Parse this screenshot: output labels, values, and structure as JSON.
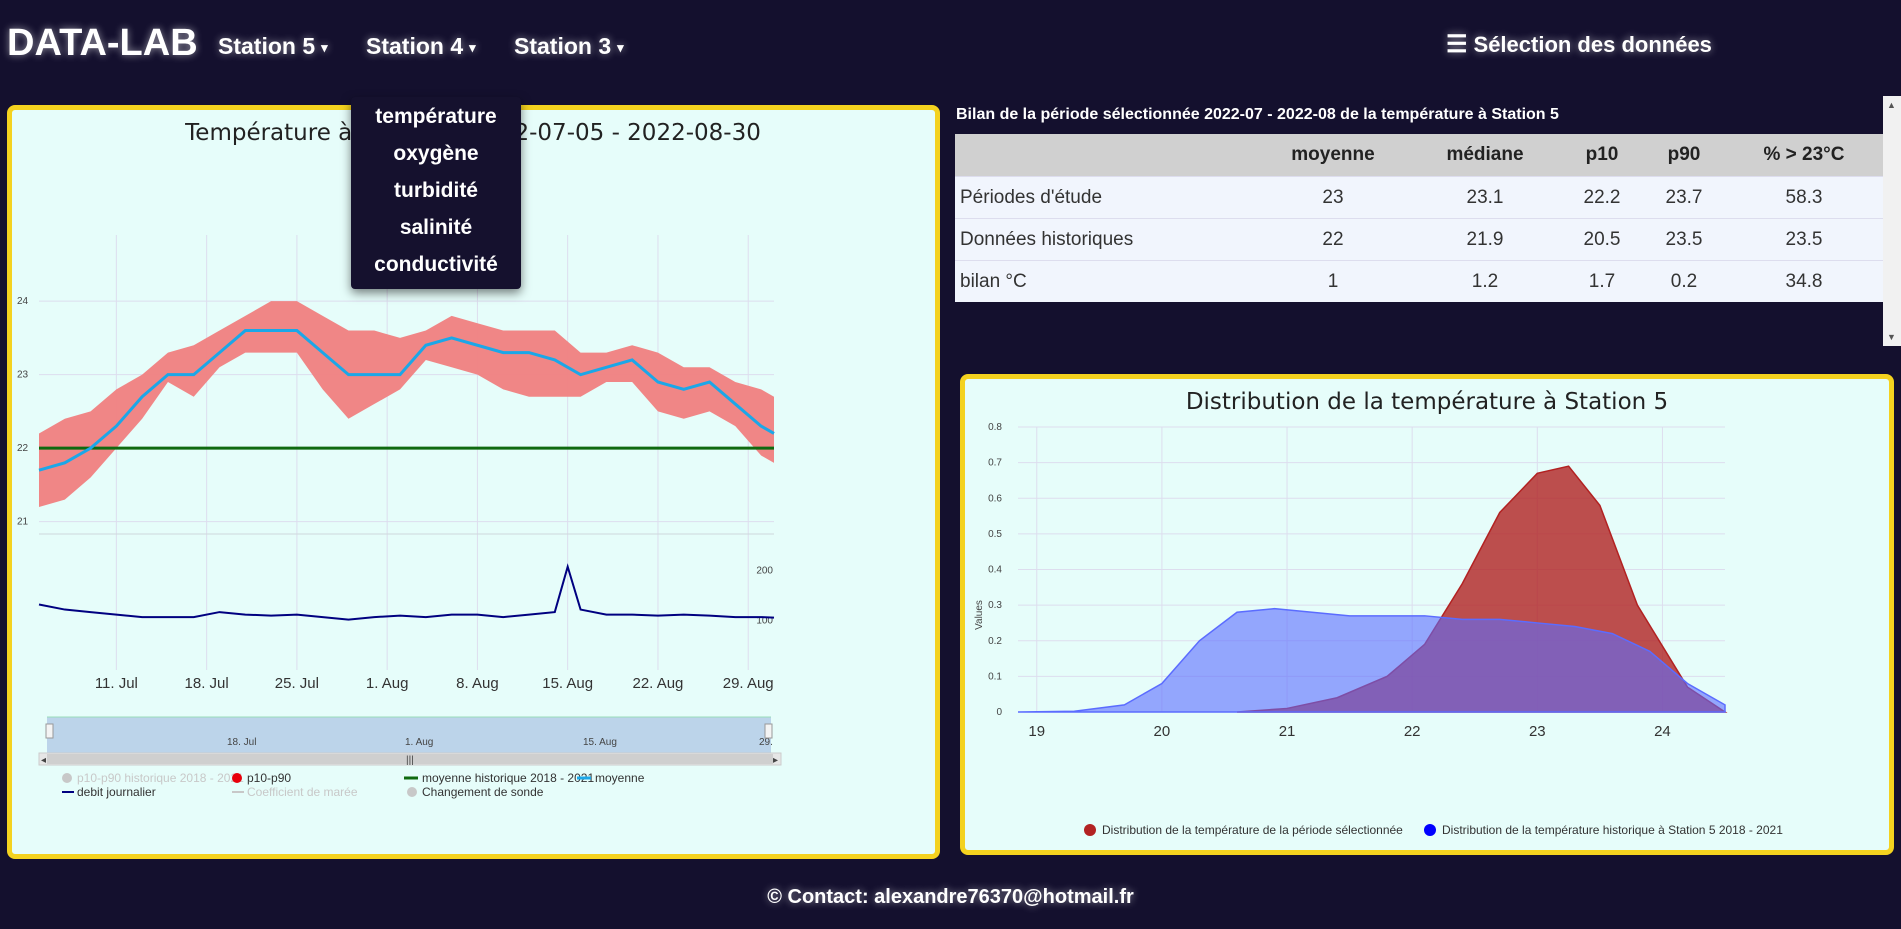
{
  "header": {
    "brand": "DATA-LAB",
    "nav": [
      {
        "label": "Station 5",
        "caret": "▾"
      },
      {
        "label": "Station 4",
        "caret": "▾"
      },
      {
        "label": "Station 3",
        "caret": "▾"
      }
    ],
    "selection_button": {
      "icon": "☰",
      "label": "Sélection des données"
    }
  },
  "dropdown": {
    "items": [
      "température",
      "oxygène",
      "turbidité",
      "salinité",
      "conductivité"
    ]
  },
  "timeseries_chart": {
    "title": "Température à Station 5 2022-07-05 - 2022-08-30",
    "navigator_labels": [
      "18. Jul",
      "1. Aug",
      "15. Aug",
      "29."
    ],
    "legend": [
      {
        "label": "p10-p90 historique 2018 - 2021",
        "color": "#c8c8c8",
        "symbol": "dot",
        "disabled": true
      },
      {
        "label": "p10-p90",
        "color": "#e8000b",
        "symbol": "dot",
        "disabled": false
      },
      {
        "label": "moyenne historique 2018 - 2021",
        "color": "#0f6a0f",
        "symbol": "line",
        "disabled": false
      },
      {
        "label": "moyenne",
        "color": "#1ba7e8",
        "symbol": "line",
        "disabled": false
      },
      {
        "label": "debit journalier",
        "color": "#000080",
        "symbol": "line",
        "disabled": false
      },
      {
        "label": "Coefficient de marée",
        "color": "#c8c8c8",
        "symbol": "line",
        "disabled": true
      },
      {
        "label": "Changement de sonde",
        "color": "#c8c8c8",
        "symbol": "dot",
        "disabled": false
      }
    ]
  },
  "table": {
    "caption": "Bilan de la période sélectionnée 2022-07 - 2022-08 de la température à Station 5",
    "headers": [
      "",
      "moyenne",
      "médiane",
      "p10",
      "p90",
      "% > 23°C"
    ],
    "rows": [
      [
        "Périodes d'étude",
        "23",
        "23.1",
        "22.2",
        "23.7",
        "58.3"
      ],
      [
        "Données historiques",
        "22",
        "21.9",
        "20.5",
        "23.5",
        "23.5"
      ],
      [
        "bilan °C",
        "1",
        "1.2",
        "1.7",
        "0.2",
        "34.8"
      ]
    ]
  },
  "footer": {
    "text": "© Contact: alexandre76370@hotmail.fr"
  },
  "chart_data": [
    {
      "type": "line",
      "title": "Température à Station 5 2022-07-05 - 2022-08-30",
      "x_tick_labels": [
        "11. Jul",
        "18. Jul",
        "25. Jul",
        "1. Aug",
        "8. Aug",
        "15. Aug",
        "22. Aug",
        "29. Aug"
      ],
      "x_tick_days": [
        11,
        18,
        25,
        32,
        39,
        46,
        53,
        60
      ],
      "y_ticks": [
        21,
        22,
        23,
        24
      ],
      "ylim": [
        20.9,
        24.9
      ],
      "x_day_range": [
        5,
        62
      ],
      "series": [
        {
          "name": "moyenne",
          "color": "#1ba7e8",
          "x": [
            5,
            7,
            9,
            11,
            13,
            15,
            17,
            19,
            21,
            23,
            25,
            27,
            29,
            31,
            33,
            35,
            37,
            39,
            41,
            43,
            45,
            47,
            49,
            51,
            53,
            55,
            57,
            59,
            61,
            62
          ],
          "y": [
            21.7,
            21.8,
            22.0,
            22.3,
            22.7,
            23.0,
            23.0,
            23.3,
            23.6,
            23.6,
            23.6,
            23.3,
            23.0,
            23.0,
            23.0,
            23.4,
            23.5,
            23.4,
            23.3,
            23.3,
            23.2,
            23.0,
            23.1,
            23.2,
            22.9,
            22.8,
            22.9,
            22.6,
            22.3,
            22.2
          ]
        },
        {
          "name": "p10-p90",
          "color": "#f08080",
          "x": [
            5,
            7,
            9,
            11,
            13,
            15,
            17,
            19,
            21,
            23,
            25,
            27,
            29,
            31,
            33,
            35,
            37,
            39,
            41,
            43,
            45,
            47,
            49,
            51,
            53,
            55,
            57,
            59,
            61,
            62
          ],
          "low": [
            21.2,
            21.3,
            21.6,
            22.0,
            22.4,
            22.9,
            22.7,
            23.1,
            23.3,
            23.3,
            23.3,
            22.8,
            22.4,
            22.6,
            22.8,
            23.2,
            23.1,
            23.0,
            22.8,
            22.7,
            22.7,
            22.7,
            22.9,
            22.9,
            22.5,
            22.4,
            22.5,
            22.3,
            21.9,
            21.8
          ],
          "high": [
            22.2,
            22.4,
            22.5,
            22.8,
            23.0,
            23.3,
            23.4,
            23.6,
            23.8,
            24.0,
            24.0,
            23.8,
            23.6,
            23.6,
            23.5,
            23.6,
            23.8,
            23.7,
            23.6,
            23.6,
            23.6,
            23.3,
            23.3,
            23.4,
            23.3,
            23.1,
            23.1,
            22.9,
            22.8,
            22.7
          ]
        },
        {
          "name": "moyenne historique 2018 - 2021",
          "color": "#0f6a0f",
          "x": [
            5,
            62
          ],
          "y": [
            22.0,
            22.0
          ]
        }
      ]
    },
    {
      "type": "line",
      "series_name": "debit journalier",
      "y_ticks": [
        100,
        200
      ],
      "ylim": [
        0,
        270
      ],
      "x_day_range": [
        5,
        62
      ],
      "x": [
        5,
        7,
        9,
        11,
        13,
        15,
        17,
        19,
        21,
        23,
        25,
        27,
        29,
        31,
        33,
        35,
        37,
        39,
        41,
        43,
        45,
        46,
        47,
        49,
        51,
        53,
        55,
        57,
        59,
        61,
        62
      ],
      "y": [
        130,
        120,
        115,
        110,
        105,
        105,
        105,
        115,
        110,
        108,
        110,
        105,
        100,
        105,
        108,
        105,
        110,
        110,
        105,
        110,
        115,
        205,
        120,
        110,
        110,
        108,
        110,
        108,
        105,
        105,
        104
      ]
    },
    {
      "type": "area",
      "title": "Distribution de la température à Station 5",
      "ylabel": "Values",
      "x_ticks": [
        19,
        20,
        21,
        22,
        23,
        24
      ],
      "y_ticks": [
        0,
        0.1,
        0.2,
        0.3,
        0.4,
        0.5,
        0.6,
        0.7,
        0.8
      ],
      "xlim": [
        18.85,
        24.5
      ],
      "ylim": [
        0,
        0.8
      ],
      "series": [
        {
          "name": "Distribution de la température de la période sélectionnée",
          "color": "#b22222",
          "x": [
            20.6,
            21.0,
            21.4,
            21.8,
            22.1,
            22.4,
            22.7,
            23.0,
            23.25,
            23.5,
            23.8,
            24.2,
            24.5
          ],
          "y": [
            0,
            0.01,
            0.04,
            0.1,
            0.19,
            0.36,
            0.56,
            0.67,
            0.69,
            0.58,
            0.3,
            0.07,
            0
          ]
        },
        {
          "name": "Distribution de la température historique à Station 5 2018 - 2021",
          "color": "#5b6cff",
          "x": [
            18.85,
            19.3,
            19.7,
            20.0,
            20.3,
            20.6,
            20.9,
            21.2,
            21.5,
            21.8,
            22.1,
            22.4,
            22.7,
            23.0,
            23.3,
            23.6,
            23.9,
            24.2,
            24.5
          ],
          "y": [
            0,
            0.002,
            0.02,
            0.08,
            0.2,
            0.28,
            0.29,
            0.28,
            0.27,
            0.27,
            0.27,
            0.26,
            0.26,
            0.25,
            0.24,
            0.22,
            0.17,
            0.08,
            0.02
          ]
        }
      ]
    }
  ]
}
